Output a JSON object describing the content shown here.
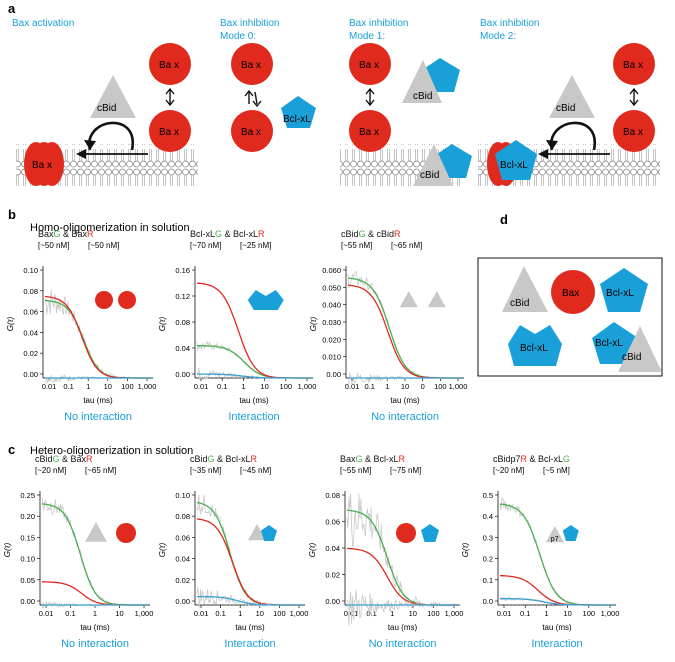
{
  "colors": {
    "red": "#e02a1e",
    "blue": "#1aa0d8",
    "grey": "#c8c8c8",
    "green": "#4caf50",
    "cyan": "#3aa0d0",
    "trace": "#c9c9c9",
    "text": "#111111"
  },
  "panel_a": {
    "letter": "a",
    "modes": [
      {
        "title": "Bax activation",
        "line2": ""
      },
      {
        "title": "Bax inhibition",
        "line2": "Mode 0:"
      },
      {
        "title": "Bax inhibition",
        "line2": "Mode 1:"
      },
      {
        "title": "Bax inhibition",
        "line2": "Mode 2:"
      }
    ],
    "labels": {
      "bax": "Ba x",
      "bax_membrane": "Ba x",
      "cbid": "cBid",
      "bclxl": "Bcl-xL"
    }
  },
  "panel_b": {
    "letter": "b",
    "heading": "Homo-oligomerization in solution"
  },
  "panel_c": {
    "letter": "c",
    "heading": "Hetero-oligomerization in solution"
  },
  "panel_d": {
    "letter": "d",
    "labels": {
      "cbid": "cBid",
      "bax": "Bax",
      "bclxl": "Bcl-xL",
      "bclxl_dimer": "Bcl-xL",
      "complex_bclxl": "Bcl-xL",
      "complex_cbid": "cBid"
    }
  },
  "axis": {
    "xlabel": "tau (ms)",
    "ylabel": "G(τ)"
  },
  "chart_data": [
    {
      "type": "line",
      "id": "b1",
      "p1": "Bax",
      "c1": "G",
      "mid": " & Bax",
      "c2": "R",
      "conc1": "[~50 nM]",
      "conc2": "[~50 nM]",
      "ylim": [
        0,
        0.1
      ],
      "yticks": [
        "0.10",
        "0.08",
        "0.06",
        "0.04",
        "0.02",
        "0.00"
      ],
      "xticks": [
        "0.01",
        "0.1",
        "1",
        "10",
        "100",
        "1,000"
      ],
      "icon": "bax2",
      "verdict": "No interaction",
      "verdict_color": "#1aa0d8",
      "series": [
        {
          "name": "green",
          "amp": 0.075,
          "tau": 0.3,
          "noise": 0.006
        },
        {
          "name": "red",
          "amp": 0.079,
          "tau": 0.25,
          "noise": 0.0
        },
        {
          "name": "cross",
          "amp": 0.0,
          "tau": 1,
          "noise": 0.002
        }
      ]
    },
    {
      "type": "line",
      "id": "b2",
      "p1": "Bcl-xL",
      "c1": "G",
      "mid": " & Bcl-xL",
      "c2": "R",
      "conc1": "[~70 nM]",
      "conc2": "[~25 nM]",
      "ylim": [
        0,
        0.16
      ],
      "yticks": [
        "0.16",
        "0.12",
        "0.08",
        "0.04",
        "0.00"
      ],
      "xticks": [
        "0.01",
        "0.1",
        "1",
        "10",
        "100",
        "1,000"
      ],
      "icon": "bcl2",
      "verdict": "Interaction",
      "verdict_color": "#1aa0d8",
      "series": [
        {
          "name": "green",
          "amp": 0.05,
          "tau": 0.6,
          "noise": 0.003
        },
        {
          "name": "red",
          "amp": 0.147,
          "tau": 0.3,
          "noise": 0.0
        },
        {
          "name": "cross",
          "amp": 0.006,
          "tau": 0.5,
          "noise": 0.004
        }
      ]
    },
    {
      "type": "line",
      "id": "b3",
      "p1": "cBid",
      "c1": "G",
      "mid": " & cBid",
      "c2": "R",
      "conc1": "[~55 nM]",
      "conc2": "[~65 nM]",
      "ylim": [
        0,
        0.06
      ],
      "yticks": [
        "0.060",
        "0.050",
        "0.040",
        "0.030",
        "0.020",
        "0.010",
        "0.00"
      ],
      "xticks": [
        "0.01",
        "0.1",
        "1",
        "10",
        "0",
        "100",
        "1,000"
      ],
      "icon": "bid2",
      "verdict": "No interaction",
      "verdict_color": "#1aa0d8",
      "series": [
        {
          "name": "green",
          "amp": 0.058,
          "tau": 0.3,
          "noise": 0.002
        },
        {
          "name": "red",
          "amp": 0.054,
          "tau": 0.25,
          "noise": 0.0
        },
        {
          "name": "cross",
          "amp": 0.0,
          "tau": 1,
          "noise": 0.0015
        }
      ]
    },
    {
      "type": "line",
      "id": "c1",
      "p1": "cBid",
      "c1": "G",
      "mid": " & Bax",
      "c2": "R",
      "conc1": "[~20 nM]",
      "conc2": "[~65 nM]",
      "ylim": [
        0,
        0.25
      ],
      "yticks": [
        "0.25",
        "0.20",
        "0.15",
        "0.10",
        "0.05",
        "0.00"
      ],
      "xticks": [
        "0.01",
        "0.1",
        "1",
        "10",
        "1,000"
      ],
      "icon": "bid_bax",
      "verdict": "No interaction",
      "verdict_color": "#1aa0d8",
      "series": [
        {
          "name": "green",
          "amp": 0.24,
          "tau": 0.3,
          "noise": 0.01
        },
        {
          "name": "red",
          "amp": 0.055,
          "tau": 0.35,
          "noise": 0.0
        },
        {
          "name": "cross",
          "amp": 0.0,
          "tau": 1,
          "noise": 0.003
        }
      ]
    },
    {
      "type": "line",
      "id": "c2",
      "p1": "cBid",
      "c1": "G",
      "mid": " & Bcl-xL",
      "c2": "R",
      "conc1": "[~35 nM]",
      "conc2": "[~45 nM]",
      "ylim": [
        0,
        0.1
      ],
      "yticks": [
        "0.10",
        "0.08",
        "0.06",
        "0.04",
        "0.02",
        "0.00"
      ],
      "xticks": [
        "0.01",
        "0.1",
        "1",
        "10",
        "100",
        "1,000"
      ],
      "icon": "bid_bcl",
      "verdict": "Interaction",
      "verdict_color": "#1aa0d8",
      "series": [
        {
          "name": "green",
          "amp": 0.098,
          "tau": 0.15,
          "noise": 0.004
        },
        {
          "name": "red",
          "amp": 0.082,
          "tau": 0.2,
          "noise": 0.0
        },
        {
          "name": "cross",
          "amp": 0.008,
          "tau": 0.4,
          "noise": 0.004
        }
      ]
    },
    {
      "type": "line",
      "id": "c3",
      "p1": "Bax",
      "c1": "G",
      "mid": " & Bcl-xL",
      "c2": "R",
      "conc1": "[~55 nM]",
      "conc2": "[~75 nM]",
      "ylim": [
        0,
        0.08
      ],
      "yticks": [
        "0.08",
        "0.06",
        "0.04",
        "0.02",
        "0.00"
      ],
      "xticks": [
        "0.01",
        "0.1",
        "1",
        "10",
        "100",
        "1,000"
      ],
      "icon": "bax_bcl",
      "verdict": "No interaction",
      "verdict_color": "#1aa0d8",
      "series": [
        {
          "name": "green",
          "amp": 0.072,
          "tau": 0.3,
          "noise": 0.012
        },
        {
          "name": "red",
          "amp": 0.043,
          "tau": 0.3,
          "noise": 0.0
        },
        {
          "name": "cross",
          "amp": 0.0,
          "tau": 1,
          "noise": 0.006
        }
      ]
    },
    {
      "type": "line",
      "id": "c4",
      "p1": "cBidp7",
      "c1": "R",
      "mid": " & Bcl-xL",
      "c2": "G",
      "c1color": "#e02a1e",
      "c2color": "#4caf50",
      "conc1": "[~20 nM]",
      "conc2": "[~5 nM]",
      "ylim": [
        0,
        0.5
      ],
      "yticks": [
        "0.5",
        "0.4",
        "0.3",
        "0.2",
        "0.1",
        "0.0"
      ],
      "xticks": [
        "0.01",
        "0.1",
        "1",
        "10",
        "100",
        "1,000"
      ],
      "icon": "p7_bcl",
      "icon_text": "p7",
      "verdict": "Interaction",
      "verdict_color": "#1aa0d8",
      "series": [
        {
          "name": "green",
          "amp": 0.48,
          "tau": 0.25,
          "noise": 0.012
        },
        {
          "name": "red",
          "amp": 0.14,
          "tau": 0.2,
          "noise": 0.0
        },
        {
          "name": "cross",
          "amp": 0.03,
          "tau": 0.4,
          "noise": 0.004
        }
      ]
    }
  ]
}
